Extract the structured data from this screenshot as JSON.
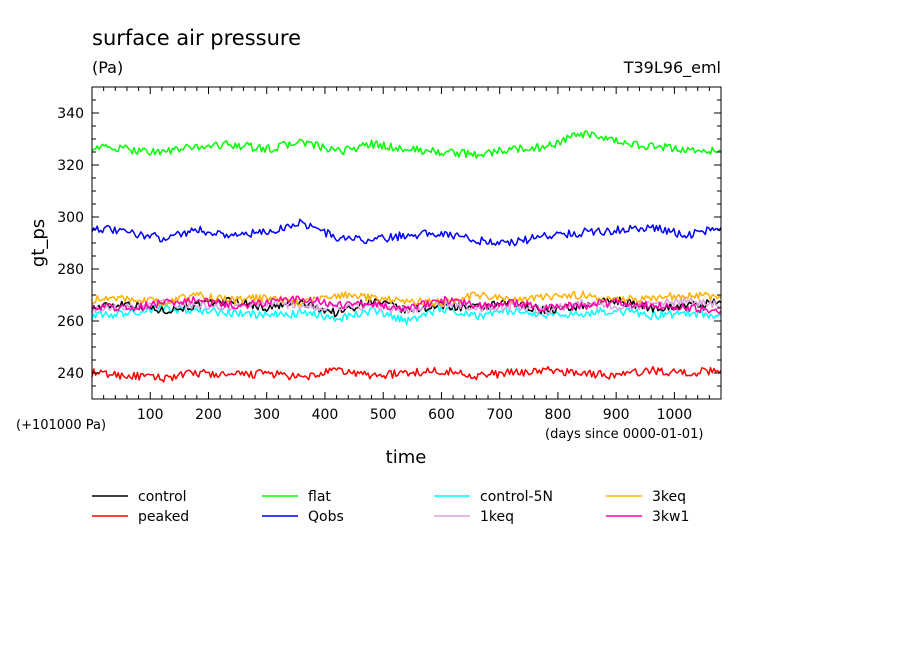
{
  "header": {
    "title": "surface air pressure",
    "units": "(Pa)",
    "run_id": "T39L96_eml"
  },
  "axis_notes": {
    "offset": "(+101000 Pa)",
    "time_origin": "(days since 0000-01-01)"
  },
  "chart_data": {
    "type": "line",
    "title": "surface air pressure",
    "xlabel": "time",
    "ylabel": "gt_ps",
    "xlim": [
      0,
      1080
    ],
    "ylim": [
      230,
      350
    ],
    "xticks": [
      100,
      200,
      300,
      400,
      500,
      600,
      700,
      800,
      900,
      1000
    ],
    "yticks": [
      240,
      260,
      280,
      300,
      320,
      340
    ],
    "x": [
      0,
      60,
      120,
      180,
      240,
      300,
      360,
      420,
      480,
      540,
      600,
      660,
      720,
      780,
      840,
      900,
      960,
      1020,
      1080
    ],
    "series": [
      {
        "name": "control",
        "color": "#000000",
        "values": [
          265,
          267,
          264,
          266,
          268,
          265,
          267,
          263,
          268,
          264,
          266,
          265,
          267,
          264,
          266,
          268,
          265,
          266,
          267
        ]
      },
      {
        "name": "peaked",
        "color": "#ff0000",
        "values": [
          240,
          239,
          238,
          240,
          239,
          240,
          238,
          241,
          239,
          240,
          241,
          239,
          240,
          241,
          240,
          239,
          241,
          240,
          241
        ]
      },
      {
        "name": "flat",
        "color": "#00ff00",
        "values": [
          327,
          326,
          325,
          327,
          328,
          326,
          329,
          325,
          328,
          326,
          325,
          324,
          326,
          327,
          332,
          329,
          327,
          326,
          325
        ]
      },
      {
        "name": "Qobs",
        "color": "#0000ff",
        "values": [
          296,
          294,
          292,
          295,
          293,
          294,
          298,
          292,
          291,
          293,
          294,
          291,
          290,
          293,
          294,
          295,
          296,
          293,
          296
        ]
      },
      {
        "name": "control-5N",
        "color": "#00ffff",
        "values": [
          262,
          263,
          265,
          264,
          263,
          262,
          263,
          261,
          264,
          260,
          265,
          262,
          264,
          262,
          263,
          264,
          262,
          263,
          262
        ]
      },
      {
        "name": "1keq",
        "color": "#dda0dd",
        "values": [
          264,
          265,
          267,
          266,
          265,
          267,
          266,
          265,
          266,
          264,
          267,
          265,
          266,
          264,
          267,
          265,
          266,
          268,
          266
        ]
      },
      {
        "name": "3keq",
        "color": "#ffb000",
        "values": [
          268,
          269,
          267,
          270,
          268,
          269,
          267,
          270,
          269,
          268,
          267,
          270,
          268,
          269,
          270,
          268,
          269,
          270,
          269
        ]
      },
      {
        "name": "3kw1",
        "color": "#ff00aa",
        "values": [
          266,
          265,
          267,
          268,
          266,
          267,
          269,
          266,
          267,
          265,
          268,
          266,
          267,
          265,
          266,
          267,
          266,
          265,
          264
        ]
      }
    ]
  }
}
